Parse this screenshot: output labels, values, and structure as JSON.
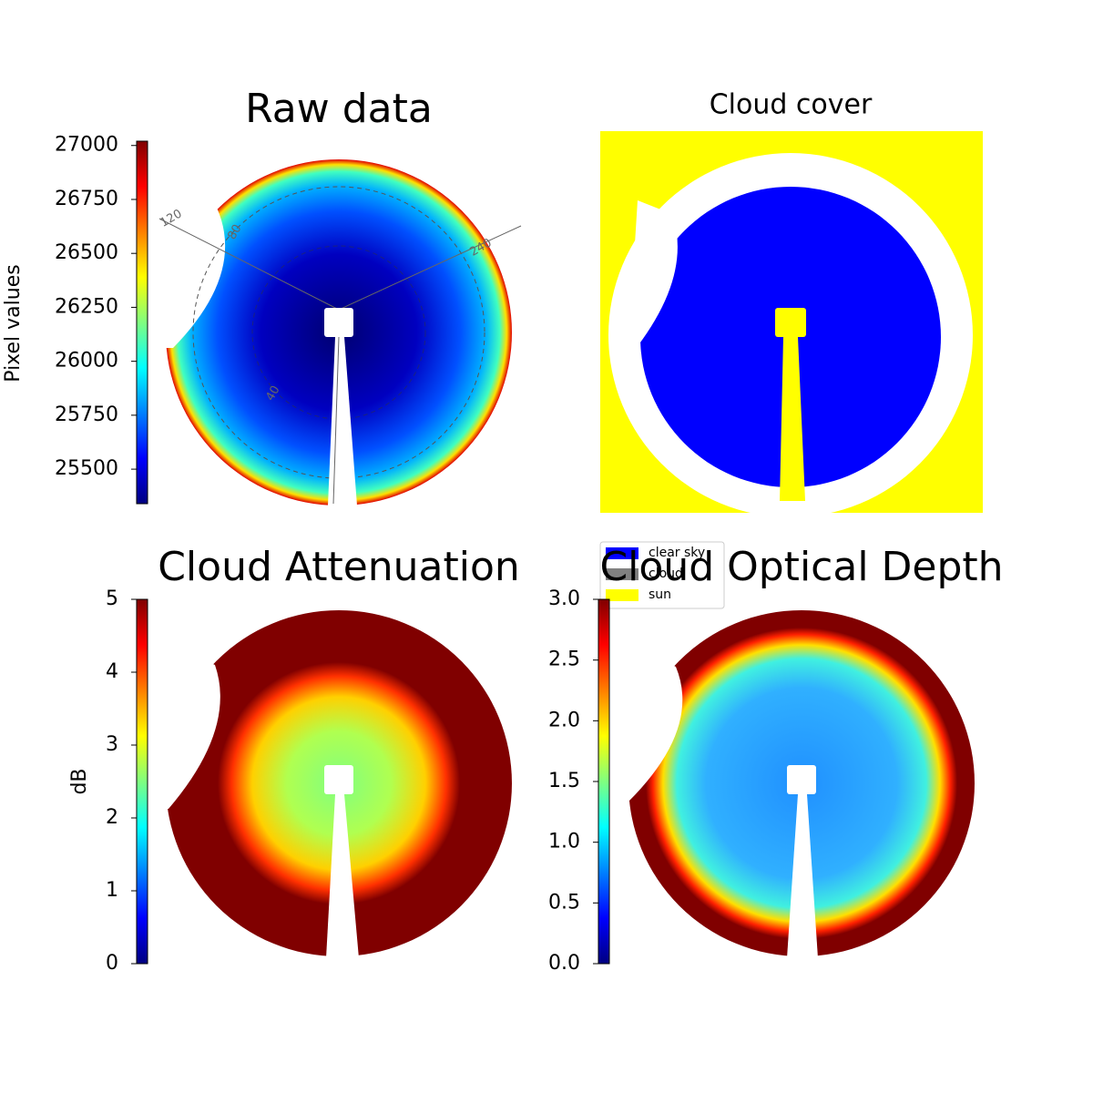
{
  "chart_data": [
    {
      "type": "image",
      "title": "Raw data",
      "colormap": "jet",
      "overlay_labels": [
        "120",
        "80",
        "240",
        "40"
      ],
      "colorbar": {
        "label": "Pixel values",
        "lim": [
          25340,
          27020
        ],
        "ticks": [
          25500,
          25750,
          26000,
          26250,
          26500,
          26750,
          27000
        ]
      }
    },
    {
      "type": "image",
      "title": "Cloud cover",
      "series": [
        {
          "name": "clear sky",
          "color": "#0000ff"
        },
        {
          "name": "cloud",
          "color": "#808080"
        },
        {
          "name": "sun",
          "color": "#ffff00"
        }
      ]
    },
    {
      "type": "image",
      "title": "Cloud Attenuation",
      "colormap": "jet",
      "colorbar": {
        "label": "dB",
        "lim": [
          0,
          5
        ],
        "ticks": [
          0,
          1,
          2,
          3,
          4,
          5
        ]
      }
    },
    {
      "type": "image",
      "title": "Cloud Optical Depth",
      "colormap": "jet",
      "colorbar": {
        "lim": [
          0,
          3
        ],
        "ticks": [
          {
            "value": 0,
            "label": "0.0"
          },
          0.5,
          {
            "value": 1,
            "label": "1.0"
          },
          1.5,
          {
            "value": 2,
            "label": "2.0"
          },
          2.5,
          {
            "value": 3,
            "label": "3.0"
          }
        ]
      }
    }
  ]
}
